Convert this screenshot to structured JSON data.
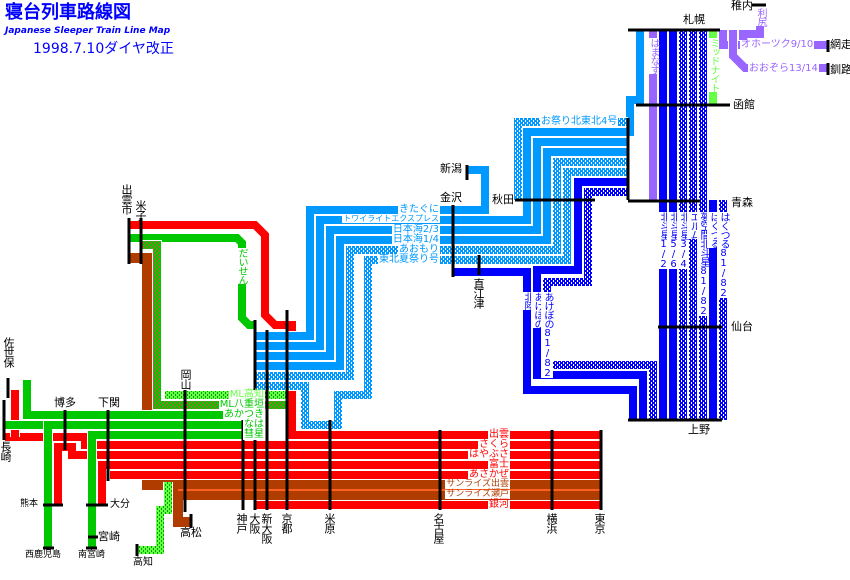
{
  "header": {
    "title": "寝台列車路線図",
    "subtitle": "Japanese Sleeper Train Line Map",
    "revision": "1998.7.10ダイヤ改正"
  },
  "colors": {
    "title": "#0000ff",
    "red": "#ff0000",
    "brown": "#b03c00",
    "green": "#00c800",
    "light_green": "#66ff44",
    "light_blue": "#0099ff",
    "dark_blue": "#0000ff",
    "purple": "#9966ff",
    "station_bar": "#000000"
  },
  "stations": {
    "sapporo": "札幌",
    "hakodate": "函館",
    "aomori": "青森",
    "sendai": "仙台",
    "ueno": "上野",
    "wakkanai": "稚内",
    "abashiri": "網走",
    "kushiro": "釧路",
    "niigata": "新潟",
    "kanazawa": "金沢",
    "akita": "秋田",
    "naoetsu": "直江津",
    "izumoshi": "出雲市",
    "yonago": "米子",
    "sasebo": "佐世保",
    "nagasaki": "長崎",
    "hakata": "博多",
    "shimonoseki": "下関",
    "okayama": "岡山",
    "kumamoto": "熊本",
    "oita": "大分",
    "miyazaki": "宮崎",
    "nishikagoshima": "西鹿児島",
    "minamimiyazaki": "南宮崎",
    "kochi": "高知",
    "takamatsu": "高松",
    "kobe": "神戸",
    "osaka": "大阪",
    "shinosaka": "新大阪",
    "kyoto": "京都",
    "maibara": "米原",
    "nagoya": "名古屋",
    "yokohama": "横浜",
    "tokyo": "東京"
  },
  "trains": [
    {
      "id": "izumo",
      "name": "出雲",
      "color": "#ff0000",
      "dotted": false
    },
    {
      "id": "sakura",
      "name": "さくら",
      "color": "#ff0000",
      "dotted": false
    },
    {
      "id": "hayabusa",
      "name": "はやぶさ",
      "color": "#ff0000",
      "dotted": false
    },
    {
      "id": "fuji",
      "name": "富士",
      "color": "#ff0000",
      "dotted": false
    },
    {
      "id": "asakaze",
      "name": "あさかぜ",
      "color": "#ff0000",
      "dotted": false
    },
    {
      "id": "sunrise_izumo",
      "name": "サンライズ出雲",
      "color": "#b03c00",
      "dotted": false
    },
    {
      "id": "sunrise_seto",
      "name": "サンライズ瀬戸",
      "color": "#b03c00",
      "dotted": false
    },
    {
      "id": "ginga",
      "name": "銀河",
      "color": "#ff0000",
      "dotted": false
    },
    {
      "id": "daisen",
      "name": "だいせん",
      "color": "#00c800",
      "dotted": false
    },
    {
      "id": "ml_kochi",
      "name": "ML高知",
      "color": "#66ff44",
      "dotted": true
    },
    {
      "id": "ml_yaegaki",
      "name": "ML八重垣",
      "color": "#00c800",
      "dotted": true
    },
    {
      "id": "akatsuki",
      "name": "あかつき",
      "color": "#00c800",
      "dotted": false
    },
    {
      "id": "naha",
      "name": "なは",
      "color": "#00c800",
      "dotted": false
    },
    {
      "id": "suisei",
      "name": "彗星",
      "color": "#00c800",
      "dotted": false
    },
    {
      "id": "kitaguni",
      "name": "きたぐに",
      "color": "#0099ff",
      "dotted": false
    },
    {
      "id": "twilight",
      "name": "トワイライトエクスプレス",
      "color": "#0099ff",
      "dotted": false
    },
    {
      "id": "nihonkai23",
      "name": "日本海2/3",
      "color": "#0099ff",
      "dotted": false
    },
    {
      "id": "nihonkai14",
      "name": "日本海1/4",
      "color": "#0099ff",
      "dotted": false
    },
    {
      "id": "aomori",
      "name": "あおもり",
      "color": "#0099ff",
      "dotted": true
    },
    {
      "id": "tohoku_natsumatsuri",
      "name": "東北夏祭り号",
      "color": "#0099ff",
      "dotted": true
    },
    {
      "id": "omatsuri",
      "name": "お祭り北東北4号",
      "color": "#0099ff",
      "dotted": true
    },
    {
      "id": "hokuriku",
      "name": "北陸",
      "color": "#0000ff",
      "dotted": false
    },
    {
      "id": "akebono",
      "name": "あけぼの",
      "color": "#0000ff",
      "dotted": false
    },
    {
      "id": "akebono8182",
      "name": "あけぼの81/82",
      "color": "#0000ff",
      "dotted": true
    },
    {
      "id": "hokutosei12",
      "name": "北斗星1/2",
      "color": "#0000ff",
      "dotted": false
    },
    {
      "id": "hokutosei56",
      "name": "北斗星5/6",
      "color": "#0000ff",
      "dotted": false
    },
    {
      "id": "hokutosei34",
      "name": "北斗星3/4",
      "color": "#0000ff",
      "dotted": true
    },
    {
      "id": "elm",
      "name": "エルム",
      "color": "#0000ff",
      "dotted": true
    },
    {
      "id": "yume",
      "name": "夢空間北斗星81/82",
      "color": "#0000ff",
      "dotted": true
    },
    {
      "id": "hakutsuru",
      "name": "はくつる",
      "color": "#0000ff",
      "dotted": false
    },
    {
      "id": "hakutsuru8182",
      "name": "はくつる81/82",
      "color": "#0000ff",
      "dotted": true
    },
    {
      "id": "hamanasu",
      "name": "はまなす",
      "color": "#9966ff",
      "dotted": false
    },
    {
      "id": "midnight",
      "name": "ミッドナイト",
      "color": "#66ff44",
      "dotted": false
    },
    {
      "id": "okhotsk",
      "name": "オホーツク9/10",
      "color": "#9966ff",
      "dotted": false
    },
    {
      "id": "ozora",
      "name": "おおぞら13/14",
      "color": "#9966ff",
      "dotted": false
    },
    {
      "id": "rishiri",
      "name": "利尻",
      "color": "#9966ff",
      "dotted": false
    }
  ]
}
